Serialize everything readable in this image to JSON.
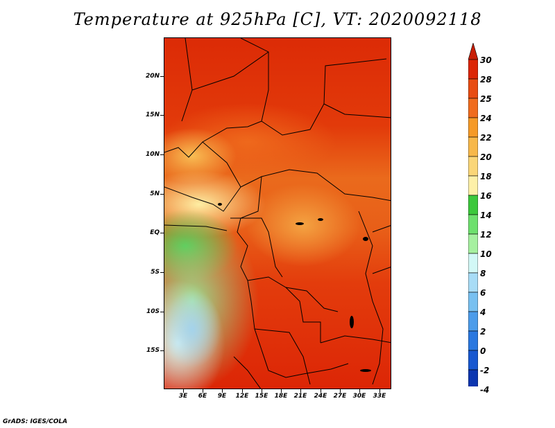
{
  "title": "Temperature at 925hPa [C], VT: 2020092118",
  "footer": "GrADS: IGES/COLA",
  "map": {
    "lat_labels": [
      "20N",
      "15N",
      "10N",
      "5N",
      "EQ",
      "5S",
      "10S",
      "15S"
    ],
    "lon_labels": [
      "3E",
      "6E",
      "9E",
      "12E",
      "15E",
      "18E",
      "21E",
      "24E",
      "27E",
      "30E",
      "33E"
    ]
  },
  "colorbar": {
    "labels": [
      "30",
      "28",
      "25",
      "24",
      "22",
      "20",
      "18",
      "16",
      "14",
      "12",
      "10",
      "8",
      "6",
      "4",
      "2",
      "0",
      "-2",
      "-4"
    ],
    "colors": [
      "#dc2605",
      "#e84c12",
      "#f06c1e",
      "#f59a28",
      "#f7b84a",
      "#fad678",
      "#fdf0a8",
      "#3cc83c",
      "#6ee06e",
      "#a6f0a0",
      "#d2f8f6",
      "#a8dcf6",
      "#78c0f0",
      "#4c9cea",
      "#2a78e0",
      "#1858d0",
      "#0c36b0",
      "#1a0c82"
    ],
    "top_arrow_color": "#c81e05",
    "bottom_arrow_color": "#e0e0f4"
  }
}
